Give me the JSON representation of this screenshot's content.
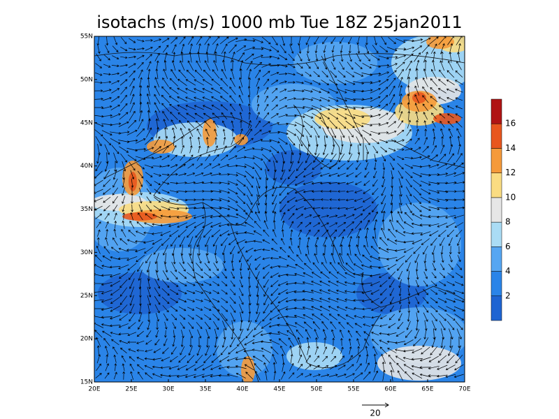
{
  "map": {
    "title": "isotachs (m/s) 1000 mb Tue 18Z 25jan2011",
    "lon_range": [
      20,
      70
    ],
    "lat_range": [
      15,
      55
    ],
    "lon_ticks": [
      {
        "value": 20,
        "label": "20E"
      },
      {
        "value": 25,
        "label": "25E"
      },
      {
        "value": 30,
        "label": "30E"
      },
      {
        "value": 35,
        "label": "35E"
      },
      {
        "value": 40,
        "label": "40E"
      },
      {
        "value": 45,
        "label": "45E"
      },
      {
        "value": 50,
        "label": "50E"
      },
      {
        "value": 55,
        "label": "55E"
      },
      {
        "value": 60,
        "label": "60E"
      },
      {
        "value": 65,
        "label": "65E"
      },
      {
        "value": 70,
        "label": "70E"
      }
    ],
    "lat_ticks": [
      {
        "value": 15,
        "label": "15N"
      },
      {
        "value": 20,
        "label": "20N"
      },
      {
        "value": 25,
        "label": "25N"
      },
      {
        "value": 30,
        "label": "30N"
      },
      {
        "value": 35,
        "label": "35N"
      },
      {
        "value": 40,
        "label": "40N"
      },
      {
        "value": 45,
        "label": "45N"
      },
      {
        "value": 50,
        "label": "50N"
      },
      {
        "value": 55,
        "label": "55N"
      }
    ],
    "colorbar": {
      "levels": [
        2,
        4,
        6,
        8,
        10,
        12,
        14,
        16
      ],
      "colors": [
        "#1e64d2",
        "#2a84e8",
        "#56a6f2",
        "#aadcf5",
        "#e6e6e6",
        "#fadc82",
        "#f59a3a",
        "#e8561e",
        "#b01414"
      ]
    },
    "reference_vector": 20
  }
}
